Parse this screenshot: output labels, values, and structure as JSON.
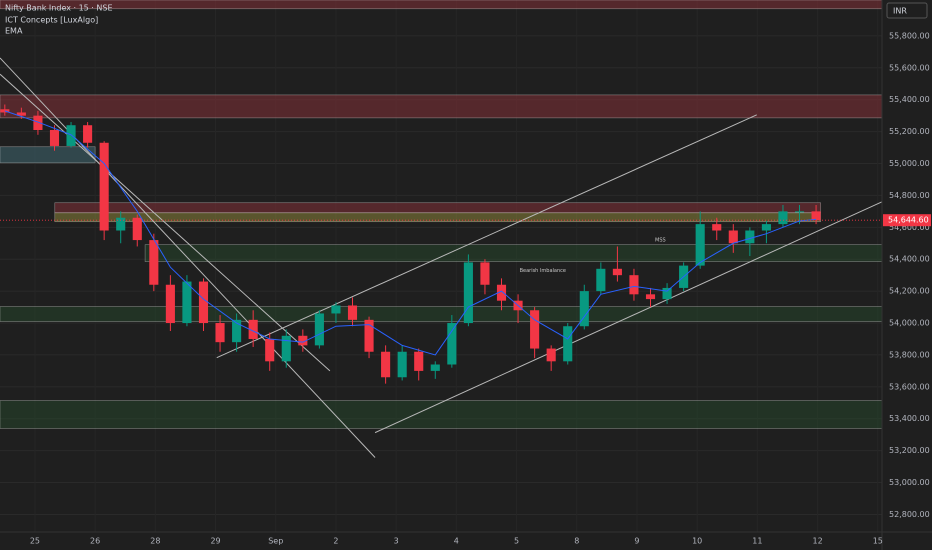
{
  "chart_data": {
    "type": "candlestick",
    "title": "Nifty Bank Index · 15 · NSE",
    "indicators": [
      "ICT Concepts [LuxAlgo]",
      "EMA"
    ],
    "currency": "INR",
    "up_color": "#089981",
    "down_color": "#f23645",
    "ylim": [
      52690,
      56025
    ],
    "yticks": [
      {
        "value": 52800,
        "label": "52,800.00"
      },
      {
        "value": 53000,
        "label": "53,000.00"
      },
      {
        "value": 53200,
        "label": "53,200.00"
      },
      {
        "value": 53400,
        "label": "53,400.00"
      },
      {
        "value": 53600,
        "label": "53,600.00"
      },
      {
        "value": 53800,
        "label": "53,800.00"
      },
      {
        "value": 54000,
        "label": "54,000.00"
      },
      {
        "value": 54200,
        "label": "54,200.00"
      },
      {
        "value": 54400,
        "label": "54,400.00"
      },
      {
        "value": 54600,
        "label": "54,600.00"
      },
      {
        "value": 54800,
        "label": "54,800.00"
      },
      {
        "value": 55000,
        "label": "55,000.00"
      },
      {
        "value": 55200,
        "label": "55,200.00"
      },
      {
        "value": 55400,
        "label": "55,400.00"
      },
      {
        "value": 55600,
        "label": "55,600.00"
      },
      {
        "value": 55800,
        "label": "55,800.00"
      }
    ],
    "xlim": [
      -0.58,
      14.07
    ],
    "xticks": [
      {
        "value": 0,
        "label": "25"
      },
      {
        "value": 1,
        "label": "26"
      },
      {
        "value": 2,
        "label": "28"
      },
      {
        "value": 3,
        "label": "29"
      },
      {
        "value": 4,
        "label": "Sep"
      },
      {
        "value": 5,
        "label": "2"
      },
      {
        "value": 6,
        "label": "3"
      },
      {
        "value": 7,
        "label": "4"
      },
      {
        "value": 8,
        "label": "5"
      },
      {
        "value": 9,
        "label": "8"
      },
      {
        "value": 10,
        "label": "9"
      },
      {
        "value": 11,
        "label": "10"
      },
      {
        "value": 12,
        "label": "11"
      },
      {
        "value": 13,
        "label": "12"
      },
      {
        "value": 14,
        "label": "15"
      }
    ],
    "grid": true,
    "candles": {
      "x": [
        -0.5,
        -0.225,
        0.05,
        0.325,
        0.6,
        0.875,
        1.15,
        1.425,
        1.7,
        1.975,
        2.25,
        2.525,
        2.8,
        3.075,
        3.35,
        3.625,
        3.9,
        4.175,
        4.45,
        4.725,
        5.0,
        5.275,
        5.55,
        5.825,
        6.1,
        6.375,
        6.65,
        6.925,
        7.2,
        7.475,
        7.75,
        8.025,
        8.3,
        8.575,
        8.85,
        9.125,
        9.4,
        9.675,
        9.95,
        10.225,
        10.5,
        10.775,
        11.05,
        11.325,
        11.6,
        11.875,
        12.15,
        12.425,
        12.7,
        12.975
      ],
      "open": [
        55340,
        55320,
        55300,
        55210,
        55110,
        55240,
        55130,
        54580,
        54660,
        54520,
        54240,
        54000,
        54260,
        54000,
        53880,
        54020,
        53900,
        53760,
        53920,
        53860,
        54060,
        54110,
        54020,
        53820,
        53660,
        53820,
        53700,
        53740,
        54000,
        54380,
        54240,
        54140,
        54080,
        53840,
        53760,
        53980,
        54200,
        54340,
        54300,
        54180,
        54150,
        54220,
        54360,
        54620,
        54580,
        54500,
        54580,
        54620,
        54700,
        54700
      ],
      "high": [
        55370,
        55350,
        55330,
        55240,
        55260,
        55260,
        55140,
        54700,
        54680,
        54560,
        54300,
        54300,
        54280,
        54050,
        54060,
        54080,
        53940,
        53960,
        53960,
        54080,
        54130,
        54160,
        54040,
        53860,
        53860,
        53840,
        53760,
        54050,
        54430,
        54400,
        54280,
        54180,
        54100,
        53860,
        54000,
        54240,
        54380,
        54480,
        54340,
        54220,
        54250,
        54380,
        54700,
        54660,
        54620,
        54600,
        54640,
        54740,
        54740,
        54740
      ],
      "low": [
        55300,
        55280,
        55180,
        55080,
        55100,
        55100,
        54520,
        54500,
        54480,
        54200,
        53950,
        53980,
        53950,
        53820,
        53820,
        53850,
        53700,
        53720,
        53820,
        53840,
        54000,
        53980,
        53780,
        53620,
        53640,
        53640,
        53650,
        53720,
        53980,
        54180,
        54080,
        54000,
        53780,
        53700,
        53740,
        53960,
        54180,
        54260,
        54140,
        54100,
        54120,
        54200,
        54340,
        54520,
        54440,
        54420,
        54500,
        54600,
        54620,
        54620
      ],
      "close": [
        55320,
        55300,
        55210,
        55110,
        55240,
        55130,
        54580,
        54660,
        54520,
        54240,
        54000,
        54260,
        54000,
        53880,
        54020,
        53900,
        53760,
        53920,
        53860,
        54060,
        54110,
        54020,
        53820,
        53660,
        53820,
        53700,
        53740,
        54000,
        54380,
        54240,
        54140,
        54080,
        53840,
        53760,
        53980,
        54200,
        54340,
        54300,
        54180,
        54150,
        54220,
        54360,
        54620,
        54580,
        54500,
        54580,
        54620,
        54700,
        54700,
        54644.6
      ]
    },
    "ema": {
      "name": "EMA",
      "color": "#2962ff",
      "x": [
        -0.5,
        0.05,
        0.6,
        1.15,
        1.7,
        2.25,
        2.8,
        3.35,
        3.9,
        4.45,
        5.0,
        5.55,
        6.1,
        6.65,
        7.2,
        7.75,
        8.3,
        8.85,
        9.4,
        9.95,
        10.5,
        11.05,
        11.6,
        12.15,
        12.7,
        12.975
      ],
      "values": [
        55330,
        55260,
        55180,
        55000,
        54700,
        54350,
        54150,
        54000,
        53900,
        53880,
        53980,
        53990,
        53860,
        53800,
        54100,
        54200,
        54020,
        53900,
        54180,
        54230,
        54200,
        54380,
        54500,
        54560,
        54640,
        54650
      ]
    },
    "last_price": 54644.6,
    "last_price_label": "54,644.60",
    "zones": [
      {
        "x": [
          -0.58,
          14.07
        ],
        "y": [
          55970,
          56025
        ],
        "color": "rgba(150,50,60,0.45)"
      },
      {
        "x": [
          -0.58,
          14.07
        ],
        "y": [
          55286,
          55430
        ],
        "color": "rgba(150,50,60,0.45)"
      },
      {
        "x": [
          -0.58,
          1.0
        ],
        "y": [
          55004,
          55105
        ],
        "color": "rgba(70,120,130,0.45)"
      },
      {
        "x": [
          0.33,
          13.05
        ],
        "y": [
          54691,
          54754
        ],
        "color": "rgba(150,50,60,0.45)"
      },
      {
        "x": [
          0.33,
          13.05
        ],
        "y": [
          54635,
          54691
        ],
        "color": "rgba(150,140,60,0.5)"
      },
      {
        "x": [
          1.83,
          14.07
        ],
        "y": [
          54385,
          54491
        ],
        "color": "rgba(40,90,50,0.35)"
      },
      {
        "x": [
          -0.58,
          14.07
        ],
        "y": [
          54009,
          54103
        ],
        "color": "rgba(40,90,50,0.35)"
      },
      {
        "x": [
          -0.58,
          14.07
        ],
        "y": [
          53339,
          53514
        ],
        "color": "rgba(40,90,50,0.35)"
      }
    ],
    "trend_lines": [
      {
        "x": [
          3.02,
          11.99
        ],
        "y": [
          53783,
          55305
        ]
      },
      {
        "x": [
          5.65,
          14.07
        ],
        "y": [
          53313,
          54760
        ]
      },
      {
        "x": [
          -0.58,
          5.65
        ],
        "y": [
          55662,
          53157
        ]
      },
      {
        "x": [
          -0.58,
          4.9
        ],
        "y": [
          55560,
          53700
        ]
      }
    ],
    "annotations": [
      {
        "text": "MSS",
        "x": 10.3,
        "y": 54520
      },
      {
        "text": "Bearish Imbalance",
        "x": 8.05,
        "y": 54330
      }
    ]
  }
}
